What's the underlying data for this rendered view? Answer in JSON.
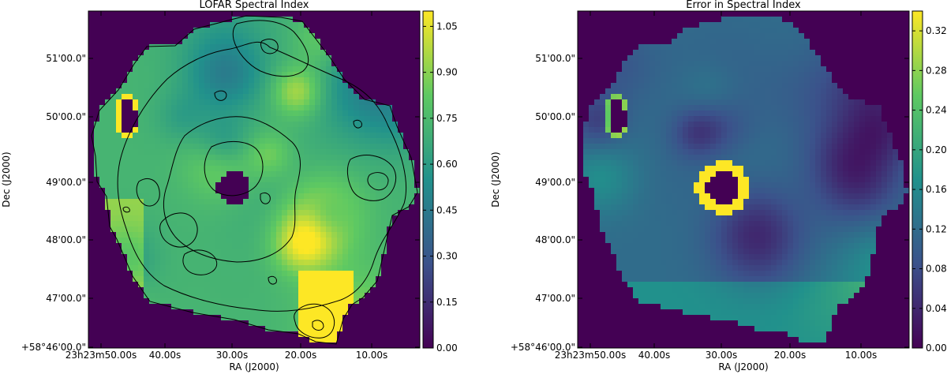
{
  "figure": {
    "background_color": "#440154",
    "contour_color": "#000000",
    "colormap": "viridis",
    "colormap_stops": [
      "#440154",
      "#3b528b",
      "#21918c",
      "#5ec962",
      "#fde725"
    ]
  },
  "chart_data": [
    {
      "type": "heatmap",
      "title": "LOFAR Spectral Index",
      "xlabel": "RA (J2000)",
      "ylabel": "Dec (J2000)",
      "x_ticks": [
        "23h23m50.00s",
        "40.00s",
        "30.00s",
        "20.00s",
        "10.00s"
      ],
      "y_ticks": [
        "+58°46'00.0\"",
        "47'00.0\"",
        "48'00.0\"",
        "49'00.0\"",
        "50'00.0\"",
        "51'00.0\""
      ],
      "colorbar_ticks": [
        "0.00",
        "0.15",
        "0.30",
        "0.45",
        "0.60",
        "0.75",
        "0.90",
        "1.05"
      ],
      "colorbar_values": [
        0.0,
        0.15,
        0.3,
        0.45,
        0.6,
        0.75,
        0.9,
        1.05
      ],
      "colorbar_range": [
        0.0,
        1.1
      ],
      "typical_value": 0.72
    },
    {
      "type": "heatmap",
      "title": "Error in Spectral Index",
      "xlabel": "RA (J2000)",
      "ylabel": "Dec (J2000)",
      "x_ticks": [
        "23h23m50.00s",
        "40.00s",
        "30.00s",
        "20.00s",
        "10.00s"
      ],
      "y_ticks": [
        "+58°46'00.0\"",
        "47'00.0\"",
        "48'00.0\"",
        "49'00.0\"",
        "50'00.0\"",
        "51'00.0\""
      ],
      "colorbar_ticks": [
        "0.00",
        "0.04",
        "0.08",
        "0.12",
        "0.16",
        "0.20",
        "0.24",
        "0.28",
        "0.32"
      ],
      "colorbar_values": [
        0.0,
        0.04,
        0.08,
        0.12,
        0.16,
        0.2,
        0.24,
        0.28,
        0.32
      ],
      "colorbar_range": [
        0.0,
        0.34
      ],
      "typical_value": 0.12
    }
  ]
}
